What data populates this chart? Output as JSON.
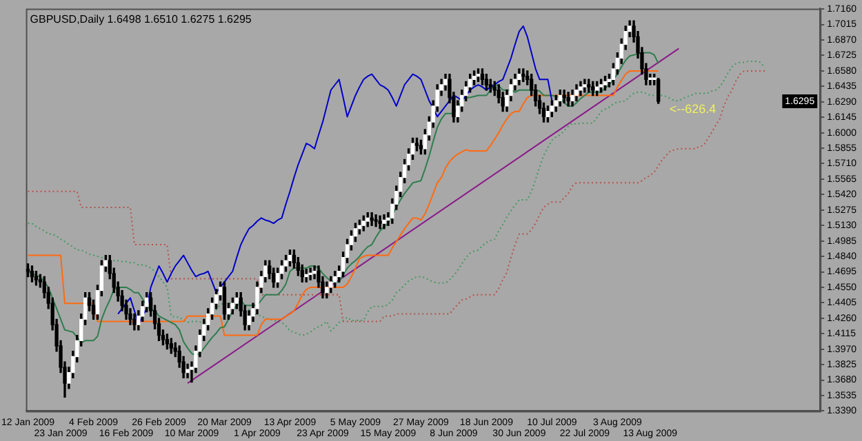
{
  "chart_data": {
    "type": "candlestick",
    "title": "GBPUSD,Daily 1.6498 1.6510 1.6275 1.6295",
    "categories": [
      "12 Jan 2009",
      null,
      null,
      null,
      null,
      null,
      null,
      null,
      "23 Jan 2009",
      null,
      null,
      null,
      null,
      null,
      null,
      null,
      "4 Feb 2009",
      null,
      null,
      null,
      null,
      null,
      null,
      null,
      "16 Feb 2009",
      null,
      null,
      null,
      null,
      null,
      null,
      null,
      "26 Feb 2009",
      null,
      null,
      null,
      null,
      null,
      null,
      null,
      "10 Mar 2009",
      null,
      null,
      null,
      null,
      null,
      null,
      null,
      "20 Mar 2009",
      null,
      null,
      null,
      null,
      null,
      null,
      null,
      "1 Apr 2009",
      null,
      null,
      null,
      null,
      null,
      null,
      null,
      "13 Apr 2009",
      null,
      null,
      null,
      null,
      null,
      null,
      null,
      "23 Apr 2009",
      null,
      null,
      null,
      null,
      null,
      null,
      null,
      "5 May 2009",
      null,
      null,
      null,
      null,
      null,
      null,
      null,
      "15 May 2009",
      null,
      null,
      null,
      null,
      null,
      null,
      null,
      "27 May 2009",
      null,
      null,
      null,
      null,
      null,
      null,
      null,
      "8 Jun 2009",
      null,
      null,
      null,
      null,
      null,
      null,
      null,
      "18 Jun 2009",
      null,
      null,
      null,
      null,
      null,
      null,
      null,
      "30 Jun 2009",
      null,
      null,
      null,
      null,
      null,
      null,
      null,
      "10 Jul 2009",
      null,
      null,
      null,
      null,
      null,
      null,
      null,
      "22 Jul 2009",
      null,
      null,
      null,
      null,
      null,
      null,
      null,
      "3 Aug 2009",
      null,
      null,
      null,
      null,
      null,
      null,
      null,
      "13 Aug 2009",
      null,
      null,
      null,
      null,
      null,
      null,
      null,
      null,
      null,
      null,
      null,
      null,
      null,
      null,
      null,
      null,
      null,
      null,
      null,
      null,
      null,
      null,
      null,
      null,
      null,
      null,
      null,
      null,
      null,
      null,
      null,
      null,
      null,
      null,
      null,
      null,
      null,
      null,
      null,
      null,
      null
    ],
    "ohlc": [
      [
        1.472,
        1.477,
        1.465,
        1.47
      ],
      [
        1.47,
        1.475,
        1.46,
        1.465
      ],
      [
        1.465,
        1.47,
        1.457,
        1.462
      ],
      [
        1.462,
        1.467,
        1.455,
        1.46
      ],
      [
        1.46,
        1.465,
        1.445,
        1.45
      ],
      [
        1.45,
        1.455,
        1.435,
        1.44
      ],
      [
        1.44,
        1.445,
        1.415,
        1.42
      ],
      [
        1.42,
        1.425,
        1.395,
        1.4
      ],
      [
        1.4,
        1.405,
        1.375,
        1.38
      ],
      [
        1.38,
        1.385,
        1.352,
        1.365
      ],
      [
        1.365,
        1.38,
        1.36,
        1.375
      ],
      [
        1.375,
        1.395,
        1.37,
        1.39
      ],
      [
        1.39,
        1.41,
        1.385,
        1.405
      ],
      [
        1.405,
        1.43,
        1.4,
        1.425
      ],
      [
        1.425,
        1.45,
        1.42,
        1.445
      ],
      [
        1.445,
        1.45,
        1.433,
        1.438
      ],
      [
        1.438,
        1.443,
        1.425,
        1.43
      ],
      [
        1.43,
        1.457,
        1.425,
        1.452
      ],
      [
        1.452,
        1.48,
        1.447,
        1.475
      ],
      [
        1.475,
        1.485,
        1.47,
        1.48
      ],
      [
        1.48,
        1.485,
        1.463,
        1.468
      ],
      [
        1.468,
        1.473,
        1.45,
        1.455
      ],
      [
        1.455,
        1.46,
        1.442,
        1.447
      ],
      [
        1.447,
        1.452,
        1.433,
        1.438
      ],
      [
        1.438,
        1.443,
        1.425,
        1.43
      ],
      [
        1.43,
        1.435,
        1.42,
        1.425
      ],
      [
        1.425,
        1.43,
        1.415,
        1.42
      ],
      [
        1.42,
        1.433,
        1.415,
        1.428
      ],
      [
        1.428,
        1.442,
        1.423,
        1.437
      ],
      [
        1.437,
        1.45,
        1.432,
        1.445
      ],
      [
        1.445,
        1.45,
        1.428,
        1.433
      ],
      [
        1.433,
        1.438,
        1.416,
        1.421
      ],
      [
        1.421,
        1.426,
        1.405,
        1.41
      ],
      [
        1.41,
        1.415,
        1.401,
        1.406
      ],
      [
        1.406,
        1.411,
        1.397,
        1.402
      ],
      [
        1.402,
        1.407,
        1.393,
        1.398
      ],
      [
        1.398,
        1.403,
        1.39,
        1.395
      ],
      [
        1.395,
        1.4,
        1.38,
        1.385
      ],
      [
        1.385,
        1.39,
        1.37,
        1.375
      ],
      [
        1.375,
        1.383,
        1.37,
        1.378
      ],
      [
        1.378,
        1.385,
        1.366,
        1.38
      ],
      [
        1.38,
        1.4,
        1.375,
        1.395
      ],
      [
        1.395,
        1.415,
        1.39,
        1.41
      ],
      [
        1.41,
        1.425,
        1.405,
        1.42
      ],
      [
        1.42,
        1.435,
        1.415,
        1.43
      ],
      [
        1.43,
        1.445,
        1.425,
        1.44
      ],
      [
        1.44,
        1.453,
        1.435,
        1.448
      ],
      [
        1.448,
        1.46,
        1.443,
        1.455
      ],
      [
        1.455,
        1.46,
        1.425,
        1.43
      ],
      [
        1.43,
        1.44,
        1.425,
        1.435
      ],
      [
        1.435,
        1.445,
        1.43,
        1.44
      ],
      [
        1.44,
        1.45,
        1.435,
        1.445
      ],
      [
        1.445,
        1.45,
        1.428,
        1.433
      ],
      [
        1.433,
        1.438,
        1.415,
        1.42
      ],
      [
        1.42,
        1.433,
        1.415,
        1.428
      ],
      [
        1.428,
        1.44,
        1.423,
        1.435
      ],
      [
        1.435,
        1.46,
        1.43,
        1.455
      ],
      [
        1.455,
        1.47,
        1.45,
        1.465
      ],
      [
        1.465,
        1.48,
        1.46,
        1.475
      ],
      [
        1.475,
        1.48,
        1.463,
        1.468
      ],
      [
        1.468,
        1.473,
        1.455,
        1.46
      ],
      [
        1.46,
        1.473,
        1.455,
        1.468
      ],
      [
        1.468,
        1.48,
        1.463,
        1.475
      ],
      [
        1.475,
        1.485,
        1.47,
        1.48
      ],
      [
        1.48,
        1.49,
        1.475,
        1.485
      ],
      [
        1.485,
        1.49,
        1.473,
        1.478
      ],
      [
        1.478,
        1.483,
        1.466,
        1.471
      ],
      [
        1.471,
        1.476,
        1.46,
        1.465
      ],
      [
        1.465,
        1.472,
        1.46,
        1.467
      ],
      [
        1.467,
        1.473,
        1.462,
        1.468
      ],
      [
        1.468,
        1.475,
        1.463,
        1.47
      ],
      [
        1.47,
        1.475,
        1.455,
        1.46
      ],
      [
        1.46,
        1.465,
        1.445,
        1.45
      ],
      [
        1.45,
        1.46,
        1.445,
        1.455
      ],
      [
        1.455,
        1.465,
        1.45,
        1.46
      ],
      [
        1.46,
        1.47,
        1.455,
        1.465
      ],
      [
        1.465,
        1.475,
        1.46,
        1.47
      ],
      [
        1.47,
        1.488,
        1.465,
        1.483
      ],
      [
        1.483,
        1.5,
        1.478,
        1.495
      ],
      [
        1.495,
        1.508,
        1.49,
        1.503
      ],
      [
        1.503,
        1.515,
        1.498,
        1.51
      ],
      [
        1.51,
        1.518,
        1.505,
        1.513
      ],
      [
        1.513,
        1.522,
        1.508,
        1.517
      ],
      [
        1.517,
        1.525,
        1.512,
        1.52
      ],
      [
        1.52,
        1.525,
        1.513,
        1.518
      ],
      [
        1.518,
        1.523,
        1.512,
        1.517
      ],
      [
        1.517,
        1.522,
        1.51,
        1.515
      ],
      [
        1.515,
        1.523,
        1.51,
        1.518
      ],
      [
        1.518,
        1.525,
        1.513,
        1.52
      ],
      [
        1.52,
        1.538,
        1.515,
        1.533
      ],
      [
        1.533,
        1.55,
        1.528,
        1.545
      ],
      [
        1.545,
        1.563,
        1.54,
        1.558
      ],
      [
        1.558,
        1.575,
        1.553,
        1.57
      ],
      [
        1.57,
        1.585,
        1.565,
        1.58
      ],
      [
        1.58,
        1.595,
        1.575,
        1.59
      ],
      [
        1.59,
        1.595,
        1.583,
        1.588
      ],
      [
        1.588,
        1.593,
        1.58,
        1.585
      ],
      [
        1.585,
        1.603,
        1.58,
        1.598
      ],
      [
        1.598,
        1.615,
        1.593,
        1.61
      ],
      [
        1.61,
        1.63,
        1.605,
        1.625
      ],
      [
        1.625,
        1.645,
        1.62,
        1.64
      ],
      [
        1.64,
        1.65,
        1.635,
        1.645
      ],
      [
        1.645,
        1.655,
        1.64,
        1.65
      ],
      [
        1.65,
        1.655,
        1.628,
        1.633
      ],
      [
        1.633,
        1.638,
        1.61,
        1.615
      ],
      [
        1.615,
        1.63,
        1.61,
        1.625
      ],
      [
        1.625,
        1.64,
        1.62,
        1.635
      ],
      [
        1.635,
        1.648,
        1.63,
        1.643
      ],
      [
        1.643,
        1.655,
        1.638,
        1.65
      ],
      [
        1.65,
        1.658,
        1.645,
        1.653
      ],
      [
        1.653,
        1.66,
        1.648,
        1.655
      ],
      [
        1.655,
        1.66,
        1.645,
        1.65
      ],
      [
        1.65,
        1.655,
        1.64,
        1.645
      ],
      [
        1.645,
        1.65,
        1.638,
        1.643
      ],
      [
        1.643,
        1.648,
        1.635,
        1.64
      ],
      [
        1.64,
        1.645,
        1.628,
        1.633
      ],
      [
        1.633,
        1.638,
        1.62,
        1.625
      ],
      [
        1.625,
        1.64,
        1.62,
        1.635
      ],
      [
        1.635,
        1.65,
        1.63,
        1.645
      ],
      [
        1.645,
        1.655,
        1.64,
        1.65
      ],
      [
        1.65,
        1.66,
        1.645,
        1.655
      ],
      [
        1.655,
        1.66,
        1.648,
        1.653
      ],
      [
        1.653,
        1.658,
        1.645,
        1.65
      ],
      [
        1.65,
        1.655,
        1.635,
        1.64
      ],
      [
        1.64,
        1.645,
        1.625,
        1.63
      ],
      [
        1.63,
        1.635,
        1.618,
        1.623
      ],
      [
        1.623,
        1.628,
        1.61,
        1.615
      ],
      [
        1.615,
        1.625,
        1.61,
        1.62
      ],
      [
        1.62,
        1.63,
        1.615,
        1.625
      ],
      [
        1.625,
        1.635,
        1.62,
        1.63
      ],
      [
        1.63,
        1.64,
        1.625,
        1.635
      ],
      [
        1.635,
        1.64,
        1.628,
        1.633
      ],
      [
        1.633,
        1.638,
        1.625,
        1.63
      ],
      [
        1.63,
        1.64,
        1.625,
        1.635
      ],
      [
        1.635,
        1.645,
        1.63,
        1.64
      ],
      [
        1.64,
        1.648,
        1.635,
        1.643
      ],
      [
        1.643,
        1.65,
        1.638,
        1.645
      ],
      [
        1.645,
        1.65,
        1.638,
        1.643
      ],
      [
        1.643,
        1.648,
        1.635,
        1.64
      ],
      [
        1.64,
        1.648,
        1.635,
        1.643
      ],
      [
        1.643,
        1.65,
        1.638,
        1.645
      ],
      [
        1.645,
        1.653,
        1.64,
        1.648
      ],
      [
        1.648,
        1.655,
        1.643,
        1.65
      ],
      [
        1.65,
        1.665,
        1.645,
        1.66
      ],
      [
        1.66,
        1.675,
        1.655,
        1.67
      ],
      [
        1.67,
        1.688,
        1.665,
        1.683
      ],
      [
        1.683,
        1.7,
        1.678,
        1.695
      ],
      [
        1.695,
        1.705,
        1.69,
        1.7
      ],
      [
        1.7,
        1.705,
        1.685,
        1.69
      ],
      [
        1.69,
        1.695,
        1.67,
        1.675
      ],
      [
        1.675,
        1.68,
        1.655,
        1.66
      ],
      [
        1.66,
        1.665,
        1.645,
        1.65
      ],
      [
        1.65,
        1.655,
        1.645,
        1.65
      ],
      [
        1.65,
        1.655,
        1.645,
        1.65
      ],
      [
        1.6498,
        1.651,
        1.6275,
        1.6295
      ],
      null,
      null,
      null,
      null,
      null,
      null,
      null,
      null,
      null,
      null,
      null,
      null,
      null,
      null,
      null,
      null,
      null,
      null,
      null,
      null,
      null,
      null,
      null,
      null,
      null,
      null,
      null,
      null,
      null,
      null,
      null,
      null,
      null,
      null,
      null,
      null,
      null,
      null,
      null
    ],
    "series": [
      {
        "type": "line",
        "color": "#0000c8",
        "values": [
          null,
          null,
          null,
          null,
          null,
          null,
          null,
          null,
          null,
          null,
          null,
          null,
          null,
          null,
          null,
          null,
          null,
          null,
          null,
          null,
          null,
          null,
          1.43,
          1.435,
          1.44,
          1.445,
          1.433,
          1.42,
          1.428,
          1.435,
          1.455,
          1.465,
          1.475,
          1.468,
          1.46,
          1.468,
          1.475,
          1.48,
          1.485,
          1.478,
          1.471,
          1.465,
          1.467,
          1.468,
          1.47,
          1.46,
          1.45,
          1.455,
          1.46,
          1.465,
          1.47,
          1.483,
          1.495,
          1.503,
          1.51,
          1.513,
          1.517,
          1.52,
          1.518,
          1.517,
          1.515,
          1.518,
          1.52,
          1.533,
          1.545,
          1.558,
          1.57,
          1.58,
          1.59,
          1.588,
          1.585,
          1.598,
          1.61,
          1.625,
          1.64,
          1.645,
          1.65,
          1.633,
          1.615,
          1.625,
          1.635,
          1.643,
          1.65,
          1.653,
          1.655,
          1.65,
          1.645,
          1.643,
          1.64,
          1.633,
          1.625,
          1.635,
          1.645,
          1.65,
          1.655,
          1.653,
          1.65,
          1.64,
          1.63,
          1.623,
          1.615,
          1.62,
          1.625,
          1.63,
          1.635,
          1.633,
          1.63,
          1.635,
          1.64,
          1.643,
          1.645,
          1.643,
          1.64,
          1.643,
          1.645,
          1.648,
          1.65,
          1.66,
          1.67,
          1.683,
          1.695,
          1.7,
          1.69,
          1.675,
          1.66,
          1.65,
          1.65,
          1.65,
          1.63,
          null,
          null,
          null,
          null,
          null,
          null,
          null,
          null,
          null,
          null,
          null,
          null,
          null,
          null,
          null,
          null,
          null,
          null,
          null,
          null,
          null,
          null,
          null,
          null,
          null,
          null,
          null,
          null,
          null,
          null,
          null,
          null,
          null,
          null,
          null,
          null,
          null,
          null,
          null,
          null,
          null,
          null,
          null,
          null,
          null,
          null,
          null,
          null,
          null,
          null,
          null,
          null,
          null,
          null,
          null,
          null,
          null,
          null,
          null,
          null,
          null,
          null,
          null,
          null,
          null
        ]
      },
      {
        "type": "line",
        "color": "#2e7d4f",
        "values": [
          1.47,
          1.468,
          1.466,
          1.465,
          1.46,
          1.455,
          1.445,
          1.435,
          1.425,
          1.415,
          1.414,
          1.413,
          1.408,
          1.403,
          1.405,
          1.405,
          1.405,
          1.409,
          1.425,
          1.435,
          1.443,
          1.453,
          1.455,
          1.455,
          1.455,
          1.453,
          1.45,
          1.45,
          1.444,
          1.438,
          1.434,
          1.433,
          1.428,
          1.426,
          1.424,
          1.422,
          1.42,
          1.415,
          1.404,
          1.398,
          1.393,
          1.391,
          1.393,
          1.398,
          1.403,
          1.408,
          1.412,
          1.417,
          1.418,
          1.425,
          1.433,
          1.438,
          1.443,
          1.438,
          1.438,
          1.438,
          1.438,
          1.443,
          1.448,
          1.448,
          1.448,
          1.448,
          1.452,
          1.458,
          1.47,
          1.473,
          1.473,
          1.473,
          1.473,
          1.475,
          1.475,
          1.473,
          1.468,
          1.464,
          1.461,
          1.46,
          1.46,
          1.467,
          1.473,
          1.477,
          1.48,
          1.484,
          1.489,
          1.493,
          1.495,
          1.502,
          1.508,
          1.512,
          1.515,
          1.523,
          1.53,
          1.537,
          1.543,
          1.548,
          1.553,
          1.554,
          1.555,
          1.566,
          1.578,
          1.592,
          1.605,
          1.613,
          1.618,
          1.618,
          1.618,
          1.624,
          1.63,
          1.633,
          1.633,
          1.634,
          1.635,
          1.635,
          1.635,
          1.64,
          1.645,
          1.644,
          1.64,
          1.64,
          1.64,
          1.638,
          1.64,
          1.64,
          1.64,
          1.64,
          1.64,
          1.639,
          1.635,
          1.635,
          1.635,
          1.634,
          1.633,
          1.628,
          1.625,
          1.625,
          1.628,
          1.632,
          1.635,
          1.638,
          1.638,
          1.638,
          1.638,
          1.642,
          1.645,
          1.65,
          1.655,
          1.662,
          1.668,
          1.672,
          1.673,
          1.674,
          1.675,
          1.675,
          1.675,
          1.673,
          1.665,
          null,
          null,
          null,
          null,
          null,
          null,
          null,
          null,
          null,
          null,
          null,
          null,
          null,
          null,
          null,
          null,
          null,
          null,
          null,
          null,
          null,
          null,
          null,
          null,
          null,
          null,
          null,
          null,
          null,
          null,
          null,
          null,
          null,
          null,
          null,
          null,
          null,
          null,
          null
        ]
      },
      {
        "type": "line",
        "color": "#ff6a10",
        "values": [
          1.485,
          1.485,
          1.485,
          1.485,
          1.485,
          1.485,
          1.485,
          1.485,
          1.485,
          1.44,
          1.44,
          1.44,
          1.44,
          1.44,
          1.44,
          1.44,
          1.44,
          1.423,
          1.423,
          1.423,
          1.423,
          1.423,
          1.423,
          1.423,
          1.423,
          1.423,
          1.423,
          1.423,
          1.423,
          1.423,
          1.423,
          1.423,
          1.423,
          1.423,
          1.423,
          1.423,
          1.423,
          1.423,
          1.423,
          1.428,
          1.428,
          1.428,
          1.428,
          1.428,
          1.428,
          1.428,
          1.428,
          1.428,
          1.41,
          1.41,
          1.41,
          1.41,
          1.41,
          1.41,
          1.41,
          1.41,
          1.41,
          1.42,
          1.425,
          1.425,
          1.425,
          1.425,
          1.425,
          1.428,
          1.43,
          1.433,
          1.44,
          1.448,
          1.453,
          1.455,
          1.455,
          1.455,
          1.455,
          1.455,
          1.455,
          1.455,
          1.455,
          1.455,
          1.458,
          1.465,
          1.473,
          1.482,
          1.484,
          1.485,
          1.485,
          1.485,
          1.485,
          1.485,
          1.485,
          1.492,
          1.498,
          1.504,
          1.51,
          1.515,
          1.52,
          1.52,
          1.518,
          1.524,
          1.533,
          1.543,
          1.553,
          1.558,
          1.567,
          1.573,
          1.577,
          1.58,
          1.582,
          1.584,
          1.583,
          1.583,
          1.583,
          1.583,
          1.583,
          1.588,
          1.594,
          1.6,
          1.607,
          1.613,
          1.618,
          1.62,
          1.62,
          1.627,
          1.633,
          1.635,
          1.635,
          1.635,
          1.635,
          1.635,
          1.635,
          1.635,
          1.635,
          1.635,
          1.635,
          1.635,
          1.635,
          1.635,
          1.635,
          1.635,
          1.635,
          1.635,
          1.635,
          1.635,
          1.635,
          1.635,
          1.643,
          1.649,
          1.655,
          1.658,
          1.658,
          1.658,
          1.658,
          1.658,
          1.658,
          1.658,
          1.658,
          null,
          null,
          null,
          null,
          null,
          null,
          null,
          null,
          null,
          null,
          null,
          null,
          null,
          null,
          null,
          null,
          null,
          null,
          null,
          null,
          null,
          null,
          null,
          null,
          null,
          null,
          null,
          null,
          null,
          null,
          null,
          null,
          null,
          null,
          null,
          null,
          null,
          null,
          null
        ]
      },
      {
        "type": "line",
        "color": "#3f9a5e",
        "line_style": "dotted",
        "values": [
          1.515,
          1.515,
          1.512,
          1.51,
          1.508,
          1.505,
          1.505,
          1.503,
          1.5,
          1.498,
          1.495,
          1.493,
          1.49,
          1.49,
          1.488,
          1.486,
          1.485,
          1.484,
          1.483,
          1.482,
          1.481,
          1.48,
          1.48,
          1.479,
          1.479,
          1.478,
          1.478,
          1.476,
          1.476,
          1.475,
          1.473,
          1.47,
          1.465,
          1.46,
          1.455,
          1.428,
          1.427,
          1.427,
          1.424,
          1.422,
          1.423,
          1.423,
          1.423,
          1.417,
          1.425,
          1.43,
          1.434,
          1.439,
          1.44,
          1.44,
          1.44,
          1.439,
          1.437,
          1.437,
          1.434,
          1.431,
          1.429,
          1.428,
          1.426,
          1.425,
          1.424,
          1.423,
          1.422,
          1.419,
          1.414,
          1.413,
          1.411,
          1.41,
          1.411,
          1.413,
          1.416,
          1.418,
          1.42,
          1.423,
          1.414,
          1.418,
          1.422,
          1.424,
          1.427,
          1.424,
          1.424,
          1.424,
          1.424,
          1.432,
          1.437,
          1.437,
          1.437,
          1.437,
          1.439,
          1.443,
          1.45,
          1.453,
          1.457,
          1.461,
          1.463,
          1.465,
          1.465,
          1.464,
          1.462,
          1.46,
          1.459,
          1.459,
          1.459,
          1.462,
          1.466,
          1.471,
          1.477,
          1.483,
          1.487,
          1.489,
          1.49,
          1.494,
          1.497,
          1.499,
          1.5,
          1.508,
          1.514,
          1.521,
          1.527,
          1.532,
          1.537,
          1.537,
          1.537,
          1.545,
          1.556,
          1.568,
          1.579,
          1.586,
          1.593,
          1.596,
          1.598,
          1.602,
          1.606,
          1.609,
          1.608,
          1.609,
          1.609,
          1.609,
          1.609,
          1.614,
          1.62,
          1.622,
          1.624,
          1.627,
          1.629,
          1.629,
          1.63,
          1.634,
          1.637,
          1.638,
          1.638,
          1.637,
          1.635,
          1.635,
          1.635,
          1.635,
          1.634,
          1.632,
          1.63,
          1.63,
          1.632,
          1.634,
          1.635,
          1.637,
          1.637,
          1.637,
          1.637,
          1.639,
          1.64,
          1.643,
          1.649,
          1.656,
          1.662,
          1.665,
          1.666,
          1.666,
          1.667,
          1.667,
          1.667,
          1.666,
          1.661,
          null,
          null,
          null,
          null,
          null,
          null,
          null,
          null,
          null,
          null,
          null,
          null,
          null
        ]
      },
      {
        "type": "line",
        "color": "#b8504a",
        "line_style": "dotted",
        "values": [
          1.545,
          1.545,
          1.545,
          1.545,
          1.545,
          1.545,
          1.545,
          1.545,
          1.545,
          1.545,
          1.545,
          1.545,
          1.545,
          1.53,
          1.53,
          1.53,
          1.53,
          1.53,
          1.53,
          1.53,
          1.53,
          1.53,
          1.53,
          1.53,
          1.53,
          1.53,
          1.495,
          1.495,
          1.495,
          1.495,
          1.495,
          1.495,
          1.495,
          1.495,
          1.495,
          1.463,
          1.463,
          1.463,
          1.463,
          1.463,
          1.463,
          1.463,
          1.463,
          1.463,
          1.463,
          1.463,
          1.463,
          1.463,
          1.463,
          1.463,
          1.463,
          1.463,
          1.463,
          1.463,
          1.463,
          1.463,
          1.463,
          1.448,
          1.448,
          1.448,
          1.448,
          1.448,
          1.448,
          1.448,
          1.448,
          1.448,
          1.448,
          1.448,
          1.448,
          1.448,
          1.448,
          1.448,
          1.448,
          1.448,
          1.448,
          1.448,
          1.448,
          1.423,
          1.423,
          1.423,
          1.423,
          1.423,
          1.423,
          1.423,
          1.423,
          1.423,
          1.423,
          1.428,
          1.428,
          1.428,
          1.43,
          1.43,
          1.43,
          1.43,
          1.43,
          1.43,
          1.43,
          1.43,
          1.43,
          1.43,
          1.43,
          1.43,
          1.43,
          1.43,
          1.435,
          1.439,
          1.443,
          1.444,
          1.446,
          1.448,
          1.448,
          1.448,
          1.448,
          1.448,
          1.448,
          1.454,
          1.462,
          1.469,
          1.483,
          1.495,
          1.505,
          1.505,
          1.505,
          1.509,
          1.515,
          1.523,
          1.53,
          1.533,
          1.535,
          1.535,
          1.535,
          1.539,
          1.543,
          1.55,
          1.553,
          1.553,
          1.553,
          1.553,
          1.553,
          1.553,
          1.553,
          1.553,
          1.553,
          1.553,
          1.553,
          1.553,
          1.553,
          1.553,
          1.553,
          1.553,
          1.555,
          1.558,
          1.56,
          1.563,
          1.569,
          1.575,
          1.579,
          1.583,
          1.584,
          1.585,
          1.585,
          1.585,
          1.585,
          1.585,
          1.587,
          1.588,
          1.594,
          1.6,
          1.607,
          1.613,
          1.625,
          1.634,
          1.64,
          1.649,
          1.655,
          1.658,
          1.658,
          1.658,
          1.658,
          1.658,
          1.658,
          null,
          null,
          null,
          null,
          null,
          null,
          null,
          null,
          null,
          null,
          null,
          null,
          null
        ]
      },
      {
        "type": "line",
        "color": "#8a1a8a",
        "values": [
          null,
          null,
          null,
          null,
          null,
          null,
          null,
          null,
          null,
          null,
          null,
          null,
          null,
          null,
          null,
          null,
          null,
          null,
          null,
          null,
          null,
          null,
          null,
          null,
          null,
          null,
          null,
          null,
          null,
          null,
          null,
          null,
          null,
          null,
          null,
          null,
          null,
          null,
          null,
          1.365,
          null,
          null,
          null,
          null,
          null,
          null,
          null,
          null,
          null,
          null,
          null,
          null,
          null,
          null,
          null,
          null,
          null,
          null,
          null,
          null,
          null,
          null,
          null,
          null,
          null,
          null,
          null,
          null,
          null,
          null,
          null,
          null,
          null,
          null,
          null,
          null,
          null,
          null,
          null,
          null,
          null,
          null,
          null,
          null,
          null,
          null,
          null,
          null,
          null,
          null,
          null,
          null,
          null,
          null,
          null,
          null,
          null,
          null,
          null,
          null,
          null,
          null,
          null,
          null,
          null,
          null,
          null,
          null,
          null,
          null,
          null,
          null,
          null,
          null,
          null,
          null,
          null,
          null,
          null,
          null,
          null,
          null,
          null,
          null,
          null,
          null,
          null,
          null,
          null,
          null,
          null,
          null,
          null,
          null,
          null,
          null,
          null,
          null,
          null,
          null,
          null,
          null,
          null,
          null,
          null,
          null,
          null,
          null,
          null,
          null,
          null,
          null,
          null,
          null,
          null,
          null,
          null,
          null,
          null,
          1.679,
          null,
          null,
          null,
          null,
          null,
          null,
          null,
          null,
          null,
          null,
          null,
          null,
          null,
          null,
          null,
          null,
          null,
          null,
          null,
          null,
          null,
          null,
          null,
          null,
          null,
          null,
          null,
          null,
          null,
          null,
          null,
          null,
          null,
          null
        ]
      }
    ],
    "ylim": [
      1.339,
      1.7165
    ],
    "yticks": [
      {
        "value": 1.716,
        "label": "1.7160"
      },
      {
        "value": 1.7015,
        "label": "1.7015"
      },
      {
        "value": 1.687,
        "label": "1.6870"
      },
      {
        "value": 1.6725,
        "label": "1.6725"
      },
      {
        "value": 1.658,
        "label": "1.6580"
      },
      {
        "value": 1.6435,
        "label": "1.6435"
      },
      {
        "value": 1.629,
        "label": "1.6290"
      },
      {
        "value": 1.6145,
        "label": "1.6145"
      },
      {
        "value": 1.6,
        "label": "1.6000"
      },
      {
        "value": 1.5855,
        "label": "1.5855"
      },
      {
        "value": 1.571,
        "label": "1.5710"
      },
      {
        "value": 1.5565,
        "label": "1.5565"
      },
      {
        "value": 1.542,
        "label": "1.5420"
      },
      {
        "value": 1.5275,
        "label": "1.5275"
      },
      {
        "value": 1.513,
        "label": "1.5130"
      },
      {
        "value": 1.4985,
        "label": "1.4985"
      },
      {
        "value": 1.484,
        "label": "1.4840"
      },
      {
        "value": 1.4695,
        "label": "1.4695"
      },
      {
        "value": 1.455,
        "label": "1.4550"
      },
      {
        "value": 1.4405,
        "label": "1.4405"
      },
      {
        "value": 1.426,
        "label": "1.4260"
      },
      {
        "value": 1.4115,
        "label": "1.4115"
      },
      {
        "value": 1.397,
        "label": "1.3970"
      },
      {
        "value": 1.3825,
        "label": "1.3825"
      },
      {
        "value": 1.368,
        "label": "1.3680"
      },
      {
        "value": 1.3535,
        "label": "1.3535"
      },
      {
        "value": 1.339,
        "label": "1.3390"
      }
    ],
    "annotations": [
      "<--626.4",
      {
        "text": "1.6295",
        "y": 1.6295
      }
    ]
  }
}
